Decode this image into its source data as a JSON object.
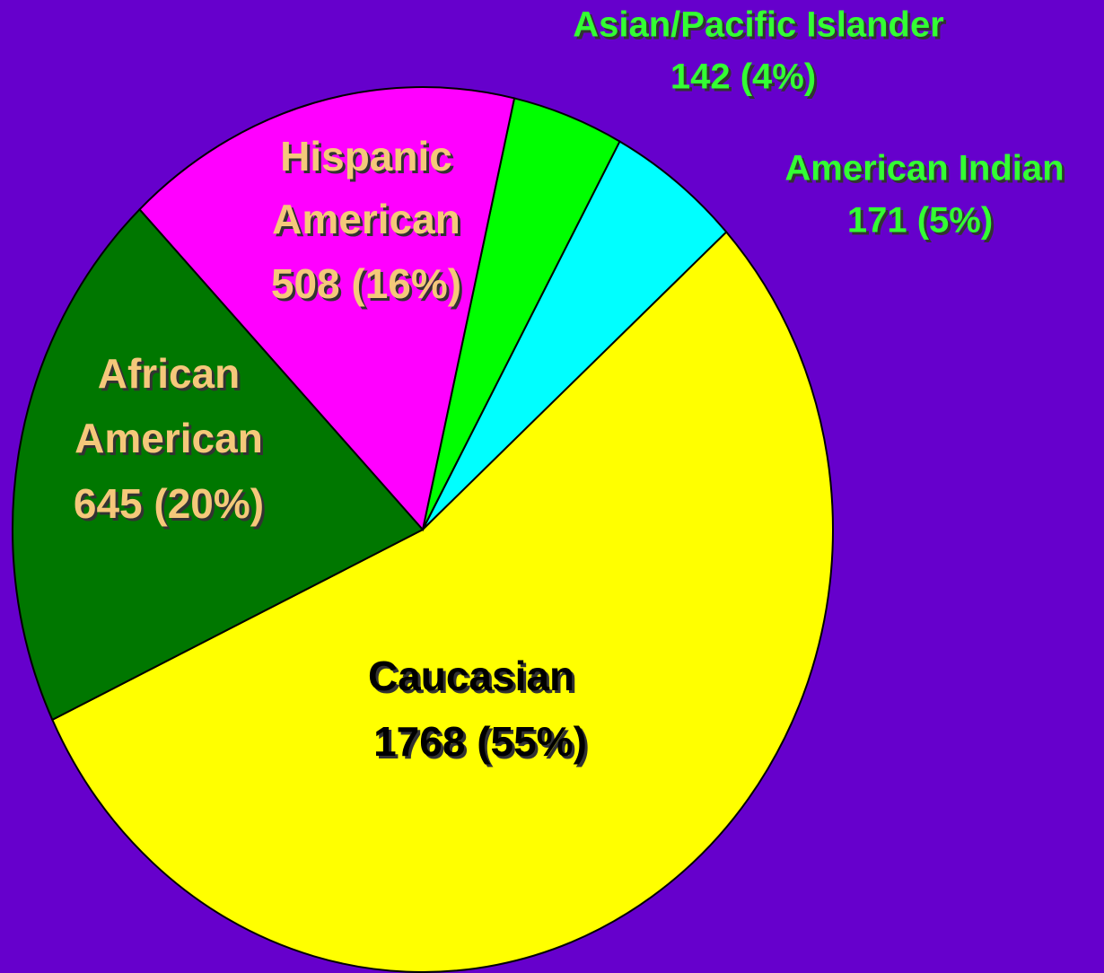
{
  "chart_data": {
    "type": "pie",
    "categories": [
      "Asian/Pacific Islander",
      "American Indian",
      "Caucasian",
      "African American",
      "Hispanic American"
    ],
    "values": [
      142,
      171,
      1768,
      645,
      508
    ],
    "value_labels": [
      "142 (4%)",
      "171 (5%)",
      "1768 (55%)",
      "645 (20%)",
      "508 (16%)"
    ],
    "colors": [
      "#00ff00",
      "#00ffff",
      "#ffff00",
      "#007700",
      "#ff00ff"
    ],
    "label_colors": [
      "#33ff33",
      "#33ff33",
      "#000000",
      "#f5c87a",
      "#f5c87a"
    ]
  }
}
